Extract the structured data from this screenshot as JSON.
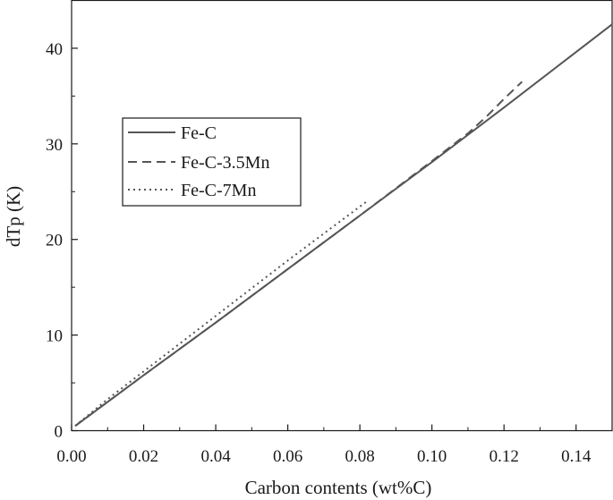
{
  "chart_data": {
    "type": "line",
    "xlabel": "Carbon contents (wt%C)",
    "ylabel": "dTp (K)",
    "xlim": [
      0,
      0.15
    ],
    "ylim": [
      0,
      45
    ],
    "xticks": [
      0.0,
      0.02,
      0.04,
      0.06,
      0.08,
      0.1,
      0.12,
      0.14
    ],
    "xtick_labels": [
      "0.00",
      "0.02",
      "0.04",
      "0.06",
      "0.08",
      "0.10",
      "0.12",
      "0.14"
    ],
    "yticks": [
      0,
      10,
      20,
      30,
      40
    ],
    "ytick_labels": [
      "0",
      "10",
      "20",
      "30",
      "40"
    ],
    "grid": false,
    "legend_position": "upper-left",
    "series": [
      {
        "name": "Fe-C",
        "style": "solid",
        "color": "#555555",
        "x": [
          0.001,
          0.02,
          0.04,
          0.06,
          0.08,
          0.1,
          0.12,
          0.14,
          0.15
        ],
        "y": [
          0.5,
          5.8,
          11.3,
          16.9,
          22.5,
          28.1,
          33.8,
          39.6,
          42.5
        ]
      },
      {
        "name": "Fe-C-3.5Mn",
        "style": "dashed",
        "color": "#555555",
        "x": [
          0.001,
          0.02,
          0.04,
          0.06,
          0.08,
          0.1,
          0.11,
          0.115,
          0.12,
          0.125
        ],
        "y": [
          0.5,
          5.8,
          11.3,
          16.9,
          22.5,
          28.2,
          31.1,
          32.8,
          34.7,
          36.5
        ]
      },
      {
        "name": "Fe-C-7Mn",
        "style": "dotted",
        "color": "#555555",
        "x": [
          0.001,
          0.01,
          0.02,
          0.04,
          0.06,
          0.082
        ],
        "y": [
          0.5,
          3.3,
          6.2,
          12.0,
          17.8,
          24.0
        ]
      }
    ]
  }
}
